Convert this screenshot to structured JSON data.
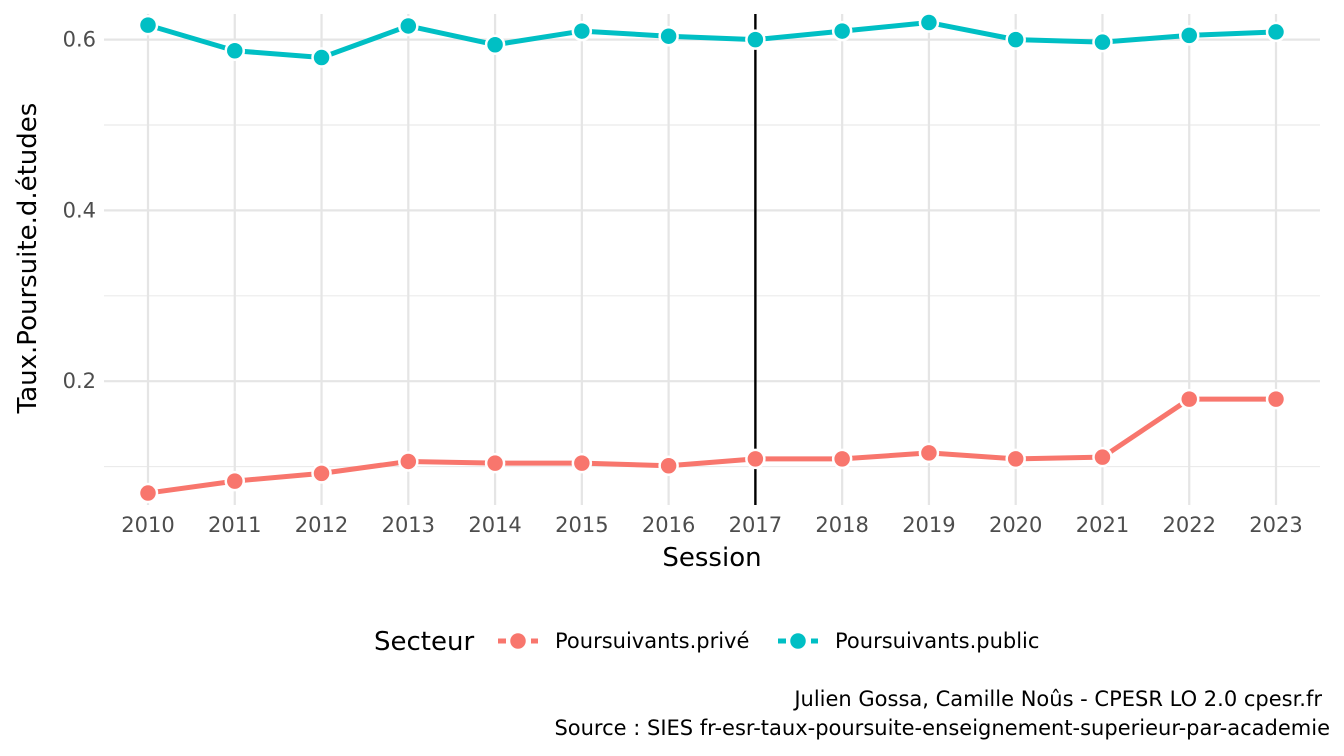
{
  "chart_data": {
    "type": "line",
    "xlabel": "Session",
    "ylabel": "Taux.Poursuite.d.études",
    "x": [
      2010,
      2011,
      2012,
      2013,
      2014,
      2015,
      2016,
      2017,
      2018,
      2019,
      2020,
      2021,
      2022,
      2023
    ],
    "x_tick_labels": [
      "2010",
      "2011",
      "2012",
      "2013",
      "2014",
      "2015",
      "2016",
      "2017",
      "2018",
      "2019",
      "2020",
      "2021",
      "2022",
      "2023"
    ],
    "y_ticks": [
      0.2,
      0.4,
      0.6
    ],
    "y_tick_labels": [
      "0.2",
      "0.4",
      "0.6"
    ],
    "ylim": [
      0.055,
      0.63
    ],
    "grid": true,
    "vline_x": 2017,
    "series": [
      {
        "name": "Poursuivants.privé",
        "color": "#F8766D",
        "values": [
          0.069,
          0.083,
          0.092,
          0.106,
          0.104,
          0.104,
          0.101,
          0.109,
          0.109,
          0.116,
          0.109,
          0.111,
          0.179,
          0.179
        ]
      },
      {
        "name": "Poursuivants.public",
        "color": "#00BFC4",
        "values": [
          0.617,
          0.587,
          0.579,
          0.616,
          0.594,
          0.61,
          0.604,
          0.6,
          0.61,
          0.62,
          0.6,
          0.597,
          0.605,
          0.609
        ]
      }
    ],
    "legend": {
      "title": "Secteur",
      "position": "bottom"
    },
    "caption": [
      "Julien Gossa, Camille Noûs - CPESR LO 2.0 cpesr.fr ",
      "Source : SIES fr-esr-taux-poursuite-enseignement-superieur-par-academie"
    ]
  }
}
